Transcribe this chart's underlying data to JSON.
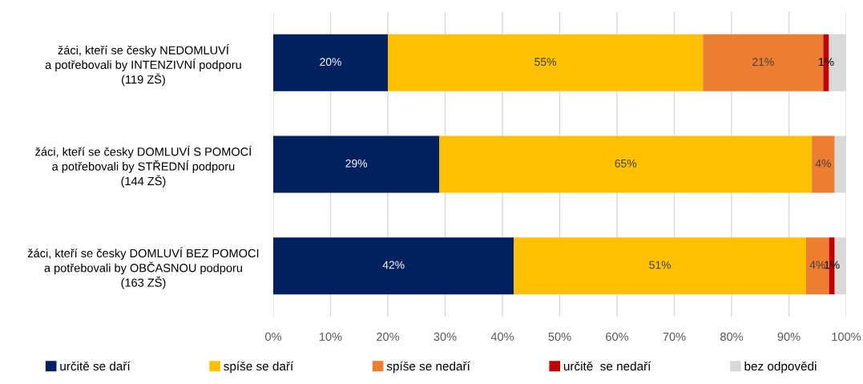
{
  "chart_data": {
    "type": "bar",
    "orientation": "horizontal",
    "stacked": true,
    "categories": [
      "žáci, kteří se česky NEDOMLUVÍ\na potřebovali by INTENZIVNÍ podporu\n(119 ZŠ)",
      "žáci, kteří se česky DOMLUVÍ S POMOCÍ\na potřebovali by STŘEDNÍ podporu\n(144 ZŠ)",
      "žáci, kteří se česky DOMLUVÍ BEZ POMOCI\na potřebovali by OBČASNOU podporu\n(163 ZŠ)"
    ],
    "series": [
      {
        "name": "určitě se daří",
        "color": "#002060",
        "values": [
          20,
          29,
          42
        ],
        "value_labels": [
          "20%",
          "29%",
          "42%"
        ]
      },
      {
        "name": "spíše se daří",
        "color": "#ffc000",
        "values": [
          55,
          65,
          51
        ],
        "value_labels": [
          "55%",
          "65%",
          "51%"
        ]
      },
      {
        "name": "spíše se nedaří",
        "color": "#ed7d31",
        "values": [
          21,
          4,
          4
        ],
        "value_labels": [
          "21%",
          "4%",
          "4%"
        ]
      },
      {
        "name": "určitě  se nedaří",
        "color": "#c00000",
        "values": [
          1,
          null,
          1
        ],
        "value_labels": [
          "1%",
          null,
          "1%"
        ]
      },
      {
        "name": "bez odpovědi",
        "color": "#d9d9d9",
        "values": [
          3,
          2,
          2
        ]
      }
    ],
    "xlim": [
      0,
      100
    ],
    "xticks": [
      {
        "value": 0,
        "label": "0%"
      },
      {
        "value": 10,
        "label": "10%"
      },
      {
        "value": 20,
        "label": "20%"
      },
      {
        "value": 30,
        "label": "30%"
      },
      {
        "value": 40,
        "label": "40%"
      },
      {
        "value": 50,
        "label": "50%"
      },
      {
        "value": 60,
        "label": "60%"
      },
      {
        "value": 70,
        "label": "70%"
      },
      {
        "value": 80,
        "label": "80%"
      },
      {
        "value": 90,
        "label": "90%"
      },
      {
        "value": 100,
        "label": "100%"
      }
    ],
    "grid": "x",
    "legend": "bottom"
  }
}
